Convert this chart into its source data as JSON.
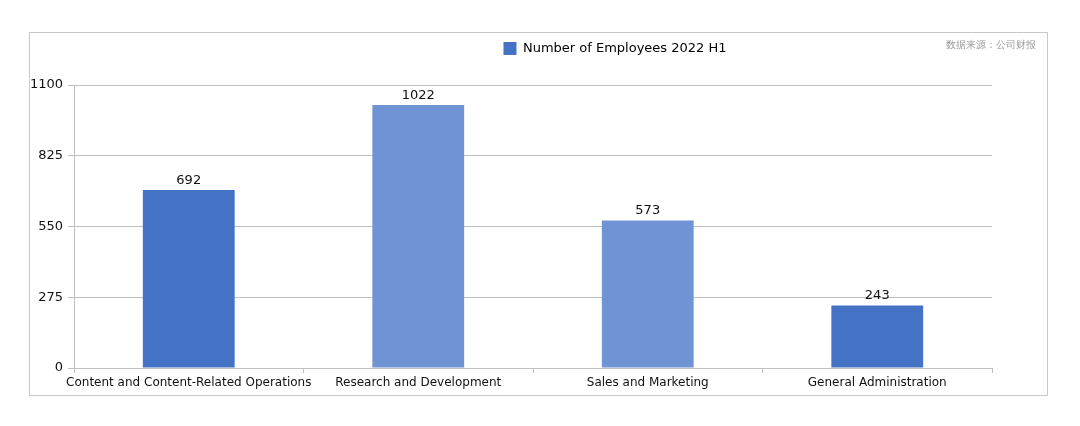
{
  "chart_data": {
    "type": "bar",
    "categories": [
      "Content and Content-Related Operations",
      "Research and Development",
      "Sales and Marketing",
      "General Administration"
    ],
    "series": [
      {
        "name": "Number of Employees 2022 H1",
        "color": "#4472c4",
        "colors": [
          "#4472c4",
          "#7094d3",
          "#7094d3",
          "#4472c4"
        ],
        "values": [
          692,
          1022,
          573,
          243
        ]
      }
    ],
    "ylim": [
      0,
      1100
    ],
    "yticks": [
      0,
      275,
      550,
      825,
      1100
    ],
    "grid": "y",
    "legend": "top",
    "data_labels": true,
    "annotations": [
      "数据来源：公司财报"
    ]
  }
}
